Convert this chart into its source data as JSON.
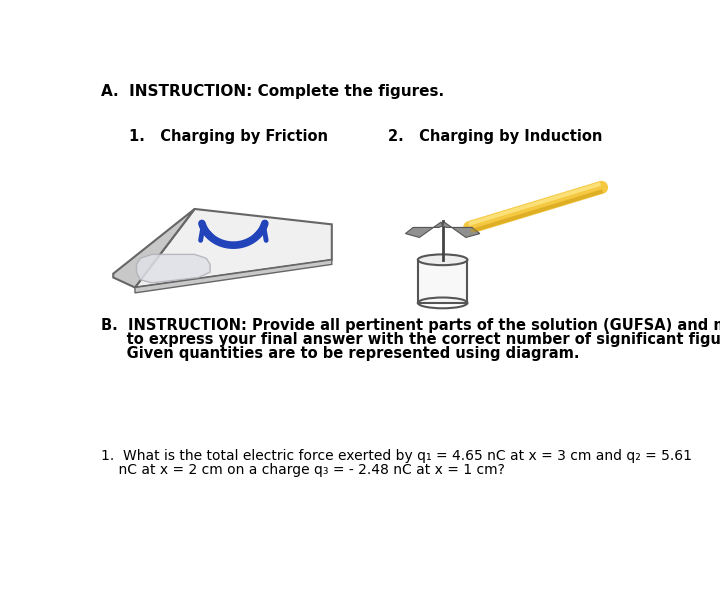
{
  "bg_color": "#ffffff",
  "text_color": "#000000",
  "title_A": "A.  INSTRUCTION: Complete the figures.",
  "label1": "1.   Charging by Friction",
  "label2": "2.   Charging by Induction",
  "B_line1": "B.  INSTRUCTION: Provide all pertinent parts of the solution (GUFSA) and make sure",
  "B_line2": "     to express your final answer with the correct number of significant figures. Note:",
  "B_line3": "     Given quantities are to be represented using diagram.",
  "Q1_line1": "1.  What is the total electric force exerted by q₁ = 4.65 nC at x = 3 cm and q₂ = 5.61",
  "Q1_line2": "    nC at x = 2 cm on a charge q₃ = - 2.48 nC at x = 1 cm?",
  "plate_face": "#f0f0f0",
  "plate_edge": "#666666",
  "plate_side": "#c8c8c8",
  "cloth_face": "#e0e0e8",
  "cloth_edge": "#b0b0b8",
  "arrow_blue": "#2244bb",
  "arrow_dark_blue": "#1133aa",
  "cyl_face": "#f8f8f8",
  "cyl_edge": "#555555",
  "stem_color": "#444444",
  "wing_face": "#888888",
  "wing_edge": "#555555",
  "rod_main": "#f5c842",
  "rod_light": "#fde98a",
  "rod_dark": "#c8960a",
  "font_size_A": 11,
  "font_size_label": 10.5,
  "font_size_B": 10.5,
  "font_size_Q": 10
}
